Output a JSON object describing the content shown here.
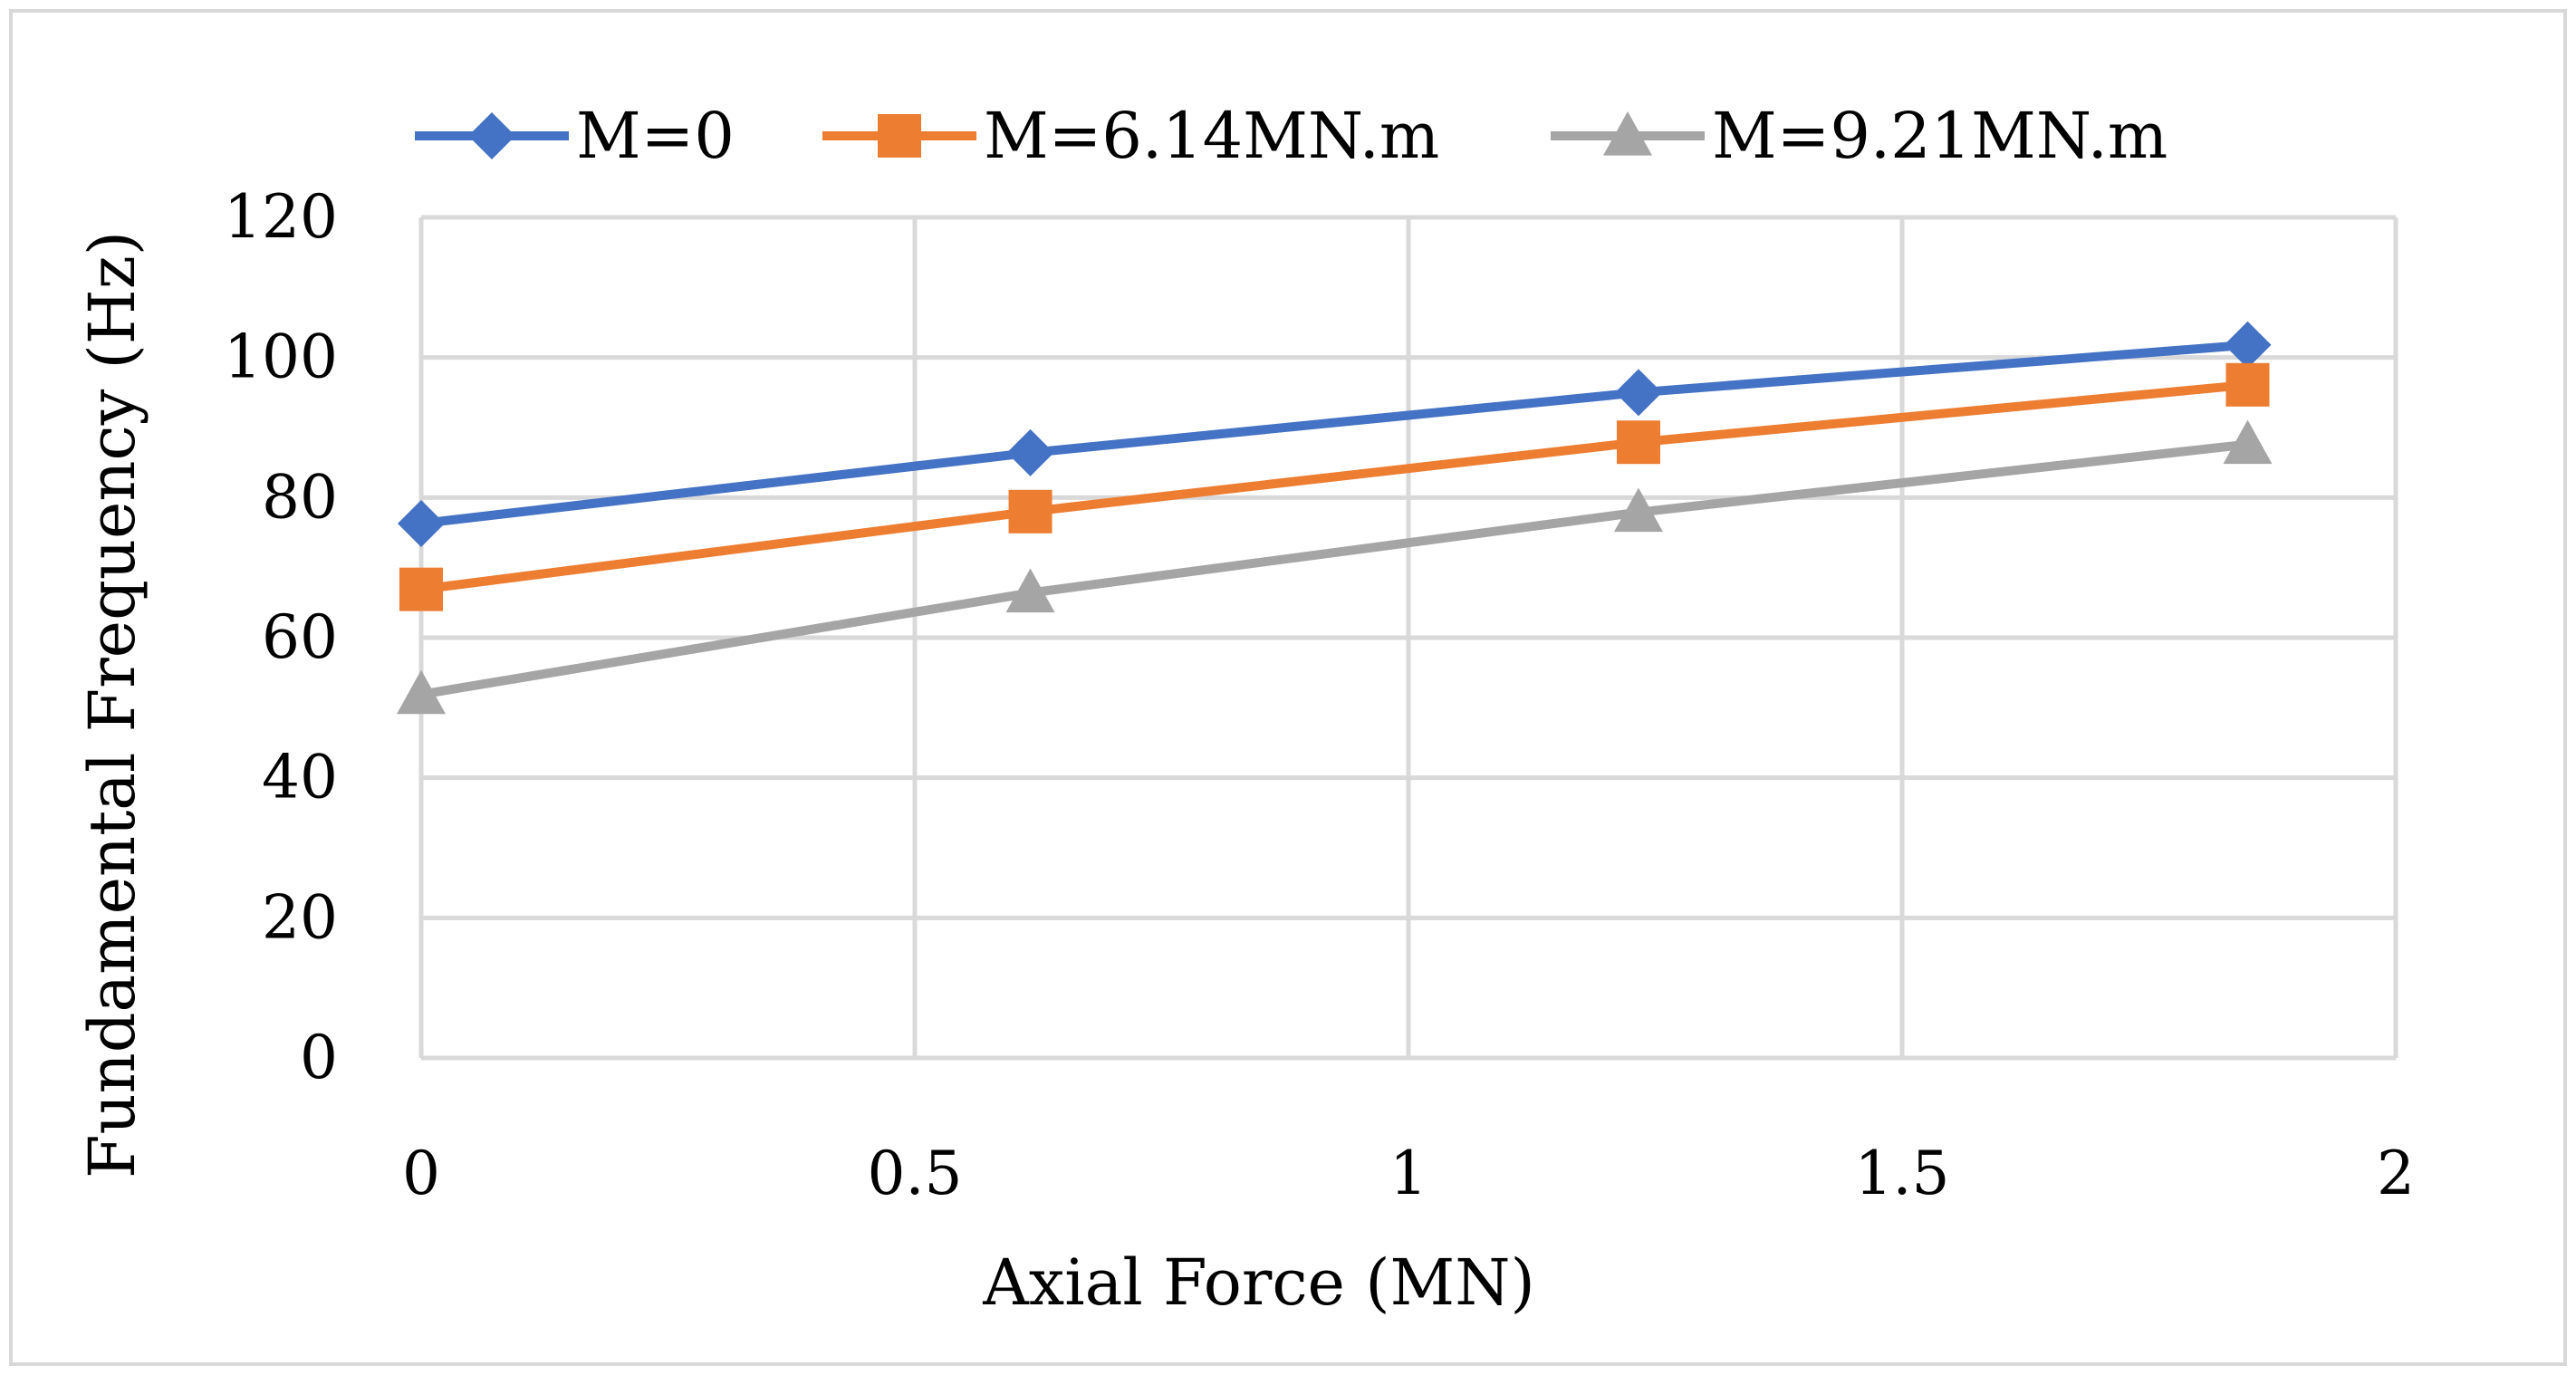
{
  "chart_data": {
    "type": "line",
    "title": "",
    "xlabel": "Axial Force (MN)",
    "ylabel": "Fundamental Frequency (Hz)",
    "xlim": [
      0,
      2
    ],
    "ylim": [
      0,
      120
    ],
    "xticks": [
      0,
      0.5,
      1,
      1.5,
      2
    ],
    "xtick_labels": [
      "0",
      "0.5",
      "1",
      "1.5",
      "2"
    ],
    "yticks": [
      0,
      20,
      40,
      60,
      80,
      100,
      120
    ],
    "ytick_labels": [
      "0",
      "20",
      "40",
      "60",
      "80",
      "100",
      "120"
    ],
    "grid": true,
    "legend_position": "top",
    "x": [
      0,
      0.617,
      1.233,
      1.85
    ],
    "series": [
      {
        "name": "M=0",
        "values": [
          76.3,
          86.4,
          95.0,
          101.8
        ],
        "color": "#4472C4",
        "marker": "diamond"
      },
      {
        "name": "M=6.14MN.m",
        "values": [
          66.9,
          78.0,
          87.9,
          96.1
        ],
        "color": "#ED7D31",
        "marker": "square"
      },
      {
        "name": "M=9.21MN.m",
        "values": [
          51.9,
          66.4,
          77.9,
          87.6
        ],
        "color": "#A5A5A5",
        "marker": "triangle"
      }
    ],
    "colors": {
      "grid": "#D9D9D9",
      "frame": "#D9D9D9"
    }
  }
}
